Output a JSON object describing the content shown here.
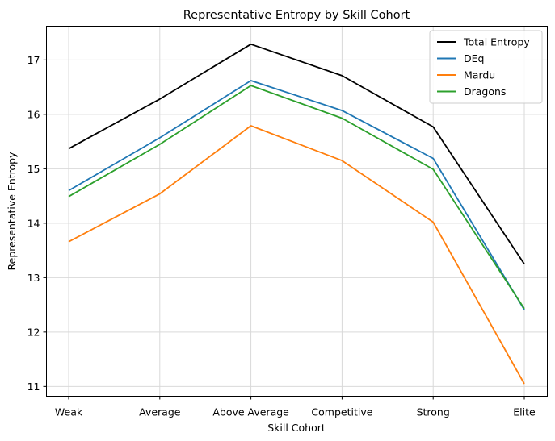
{
  "chart_data": {
    "type": "line",
    "title": "Representative Entropy by Skill Cohort",
    "xlabel": "Skill Cohort",
    "ylabel": "Representative Entropy",
    "categories": [
      "Weak",
      "Average",
      "Above Average",
      "Competitive",
      "Strong",
      "Elite"
    ],
    "ylim": [
      10.82,
      17.62
    ],
    "yticks": [
      11,
      12,
      13,
      14,
      15,
      16,
      17
    ],
    "grid": true,
    "legend_position": "top-right",
    "series": [
      {
        "name": "Total Entropy",
        "color": "#000000",
        "values": [
          15.37,
          16.28,
          17.29,
          16.71,
          15.77,
          13.25
        ]
      },
      {
        "name": "DEq",
        "color": "#1f77b4",
        "values": [
          14.6,
          15.57,
          16.62,
          16.07,
          15.19,
          12.41
        ]
      },
      {
        "name": "Mardu",
        "color": "#ff7f0e",
        "values": [
          13.66,
          14.54,
          15.79,
          15.15,
          14.02,
          11.05
        ]
      },
      {
        "name": "Dragons",
        "color": "#2ca02c",
        "values": [
          14.49,
          15.45,
          16.53,
          15.93,
          14.99,
          12.43
        ]
      }
    ]
  }
}
